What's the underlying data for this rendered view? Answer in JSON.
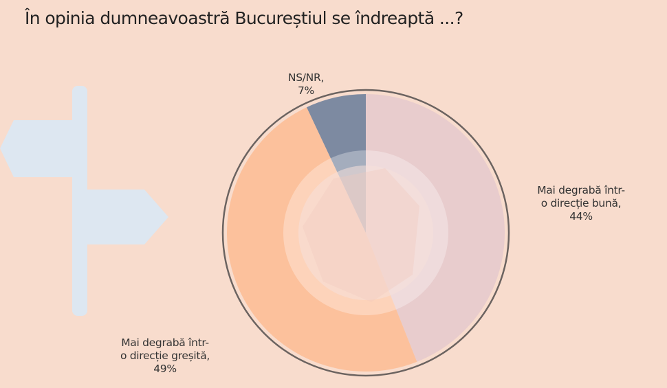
{
  "chart_data": {
    "type": "pie",
    "title": "În opinia dumneavoastră Bucureștiul se îndreaptă ...?",
    "start": "top",
    "direction": "clockwise",
    "slices": [
      {
        "label_line1": "Mai degrabă într-",
        "label_line2": "o direcție bună,",
        "value_text": "44%",
        "value": 44,
        "color": "#e8cccd"
      },
      {
        "label_line1": "Mai degrabă într-",
        "label_line2": "o direcție greșită,",
        "value_text": "49%",
        "value": 49,
        "color": "#fcc19c"
      },
      {
        "label_line1": "NS/NR,",
        "label_line2": "",
        "value_text": "7%",
        "value": 7,
        "color": "#7d8aa1"
      }
    ]
  },
  "decoration": {
    "icon": "signpost-icon",
    "color": "#dde7f1"
  }
}
